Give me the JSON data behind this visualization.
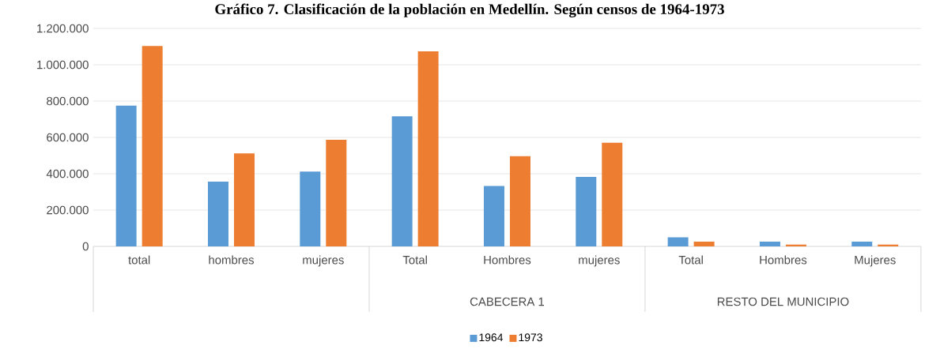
{
  "chart_data": {
    "type": "bar",
    "title": "Gráfico 7. Clasificación de la población en Medellín. Según censos de 1964-1973",
    "categories": [
      "total",
      "hombres",
      "mujeres",
      "Total",
      "Hombres",
      "mujeres",
      "Total",
      "Hombres",
      "Mujeres"
    ],
    "series": [
      {
        "name": "1964",
        "color": "#5b9bd5",
        "values": [
          775000,
          356000,
          412000,
          716000,
          333000,
          383000,
          50000,
          26000,
          26000
        ]
      },
      {
        "name": "1973",
        "color": "#ed7d31",
        "values": [
          1103000,
          512000,
          587000,
          1074000,
          497000,
          571000,
          26000,
          10000,
          10000
        ]
      }
    ],
    "annotations": [
      "CABECERA 1",
      "RESTO DEL MUNICIPIO"
    ],
    "ylim": [
      0,
      1200000
    ],
    "yticks": [
      {
        "value": 0,
        "label": "0"
      },
      {
        "value": 200000,
        "label": "200.000"
      },
      {
        "value": 400000,
        "label": "400.000"
      },
      {
        "value": 600000,
        "label": "600.000"
      },
      {
        "value": 800000,
        "label": "800.000"
      },
      {
        "value": 1000000,
        "label": "1.000.000"
      },
      {
        "value": 1200000,
        "label": "1.200.000"
      }
    ],
    "grid": "y",
    "legend": "bottom"
  }
}
